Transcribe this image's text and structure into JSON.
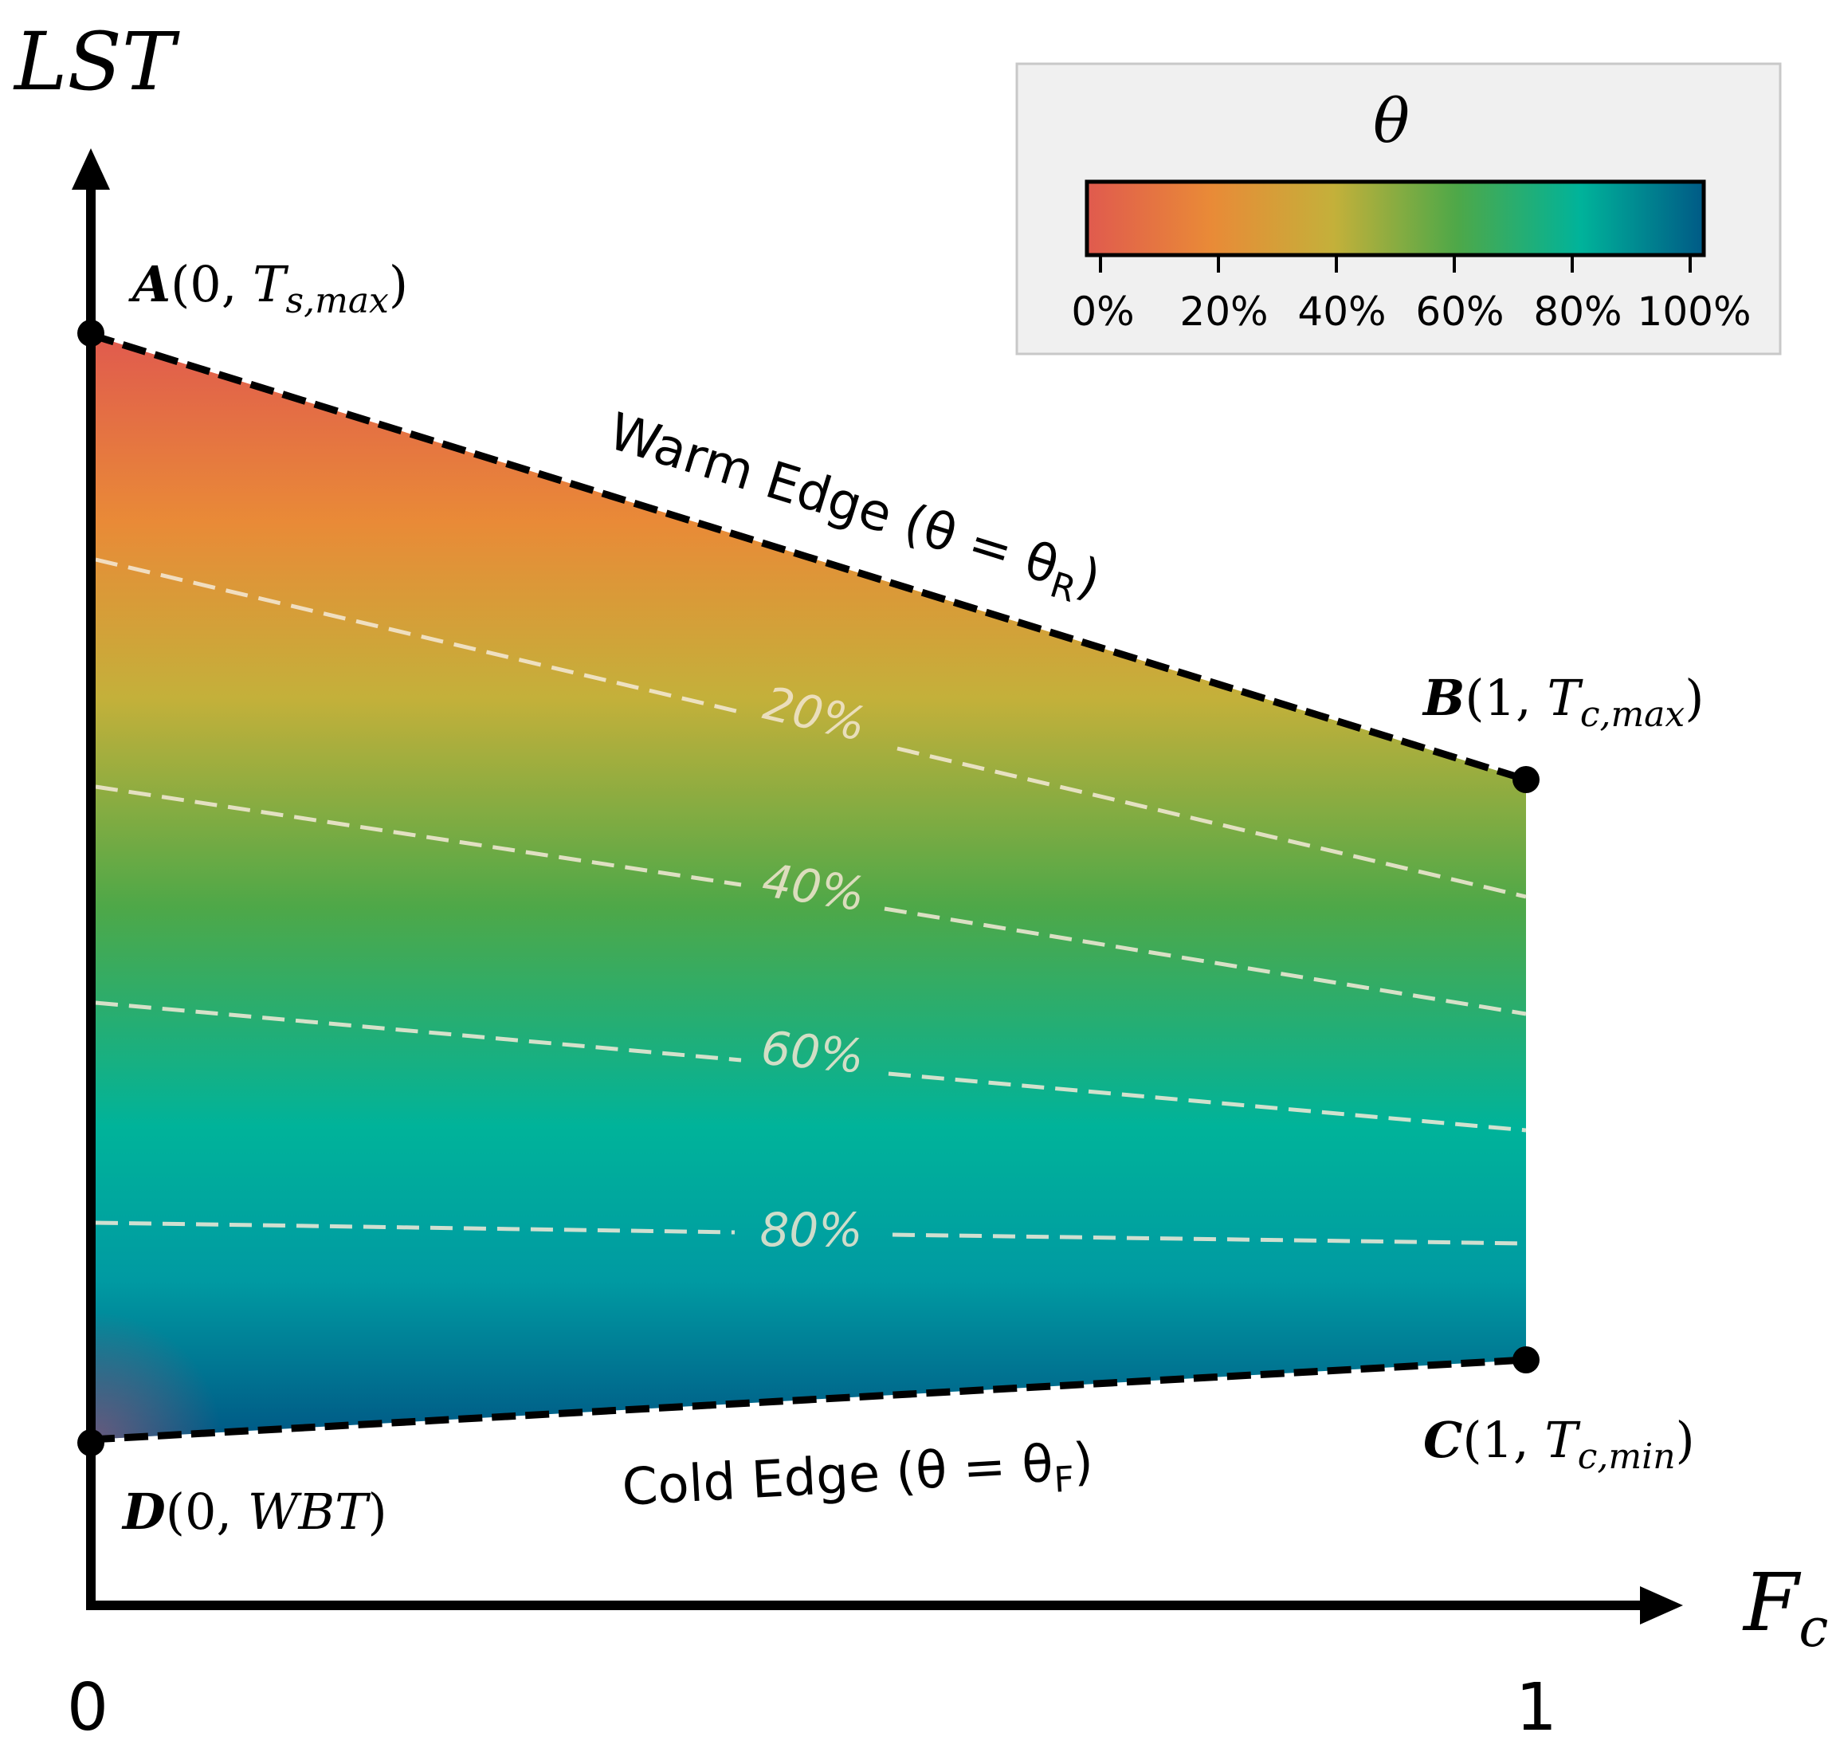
{
  "axes": {
    "y_label": "LST",
    "x_label_main": "F",
    "x_label_sub": "c",
    "x_tick_0": "0",
    "x_tick_1": "1"
  },
  "points": {
    "A": {
      "letter": "A",
      "open": "(0, ",
      "T": "T",
      "sub": "s,max",
      "close": ")"
    },
    "B": {
      "letter": "B",
      "open": "(1, ",
      "T": "T",
      "sub": "c,max",
      "close": ")"
    },
    "C": {
      "letter": "C",
      "open": "(1, ",
      "T": "T",
      "sub": "c,min",
      "close": ")"
    },
    "D": {
      "letter": "D",
      "open": "(0, ",
      "T": "WBT",
      "close": ")"
    }
  },
  "edges": {
    "warm": {
      "text": "Warm Edge (θ = θ",
      "sub": "R",
      "close": ")"
    },
    "cold": {
      "text": "Cold Edge (θ = θ",
      "sub": "F",
      "close": ")"
    }
  },
  "contours": {
    "c20": "20%",
    "c40": "40%",
    "c60": "60%",
    "c80": "80%"
  },
  "colorbar": {
    "title": "θ",
    "ticks": [
      "0%",
      "20%",
      "40%",
      "60%",
      "80%",
      "100%"
    ]
  },
  "colors": {
    "c0": "#e05a4e",
    "c20": "#e98a37",
    "c40": "#c4b03a",
    "c60": "#4ea848",
    "c80": "#00b39a",
    "c100": "#005a86",
    "legend_bg": "#f0f0f0"
  }
}
